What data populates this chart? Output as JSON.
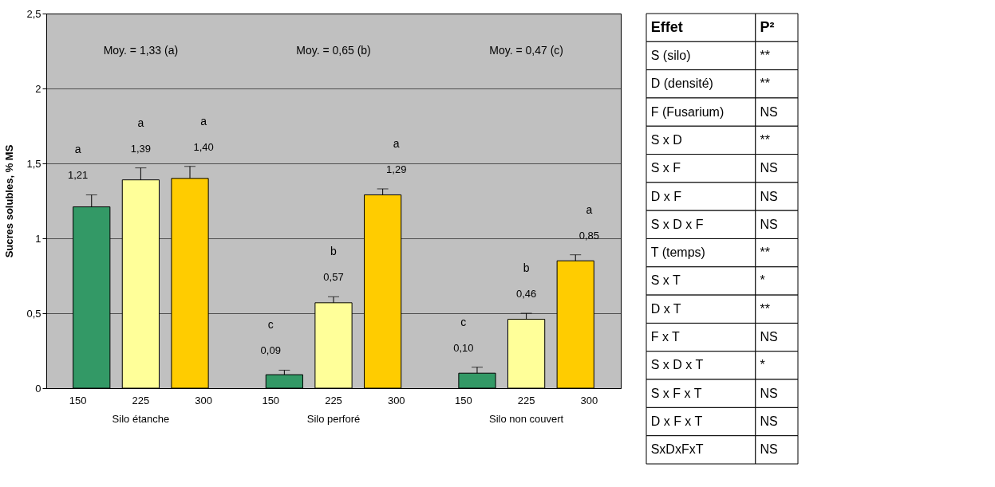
{
  "chart_data": [
    {
      "type": "bar",
      "ylabel": "Sucres solubles, % MS",
      "categories": [
        "Silo étanche",
        "Silo perforé",
        "Silo non couvert"
      ],
      "series": [
        {
          "name": "150",
          "color": "#339966",
          "values": [
            1.21,
            0.09,
            0.1
          ],
          "value_labels": [
            "1,21",
            "0,09",
            "0,10"
          ],
          "errors": [
            [
              1.21,
              1.29
            ],
            [
              0.09,
              0.12
            ],
            [
              0.1,
              0.14
            ]
          ]
        },
        {
          "name": "225",
          "color": "#ffff99",
          "values": [
            1.39,
            0.57,
            0.46
          ],
          "value_labels": [
            "1,39",
            "0,57",
            "0,46"
          ],
          "errors": [
            [
              1.39,
              1.47
            ],
            [
              0.57,
              0.61
            ],
            [
              0.46,
              0.5
            ]
          ]
        },
        {
          "name": "300",
          "color": "#ffcc00",
          "values": [
            1.4,
            1.29,
            0.85
          ],
          "value_labels": [
            "1,40",
            "1,29",
            "0,85"
          ],
          "errors": [
            [
              1.4,
              1.48
            ],
            [
              1.29,
              1.33
            ],
            [
              0.85,
              0.89
            ]
          ]
        }
      ],
      "ylim": [
        0,
        2.5
      ],
      "yticks": [
        0,
        {
          "value": 0.5,
          "label": "0,5"
        },
        1,
        {
          "value": 1.5,
          "label": "1,5"
        },
        2,
        {
          "value": 2.5,
          "label": "2,5"
        }
      ],
      "grid": "y",
      "legend": false,
      "annotations": [
        "Moy. = 1,33 (a)",
        "Moy. = 0,65 (b)",
        "Moy. = 0,47 (c)",
        "a",
        "a",
        "a",
        "c",
        "b",
        "a",
        "c",
        "b",
        "a"
      ]
    },
    {
      "type": "other",
      "categories": [
        "Effet",
        "P²"
      ],
      "y_categories": [
        "S (silo)",
        "D (densité)",
        "F (Fusarium)",
        "S x D",
        "S x F",
        "D x F",
        "S x D x F",
        "T (temps)",
        "S x T",
        "D x T",
        "F x T",
        "S x D x T",
        "S x F x T",
        "D x F x T",
        "SxDxFxT"
      ],
      "cell_labels": [
        [
          "**"
        ],
        [
          "**"
        ],
        [
          "NS"
        ],
        [
          "**"
        ],
        [
          "NS"
        ],
        [
          "NS"
        ],
        [
          "NS"
        ],
        [
          "**"
        ],
        [
          "*"
        ],
        [
          "**"
        ],
        [
          "NS"
        ],
        [
          "*"
        ],
        [
          "NS"
        ],
        [
          "NS"
        ],
        [
          "NS"
        ]
      ]
    }
  ]
}
